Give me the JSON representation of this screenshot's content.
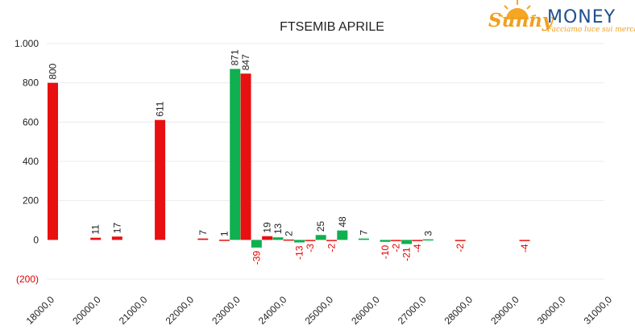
{
  "logo": {
    "word1": "Sunny",
    "word2": "MONEY",
    "tagline": "Facciamo luce sui mercati",
    "colors": {
      "sunny": "#f0a020",
      "money": "#1e4f8f"
    }
  },
  "chart_data": {
    "type": "bar",
    "title": "FTSEMIB APRILE",
    "ylim": [
      -200,
      1000
    ],
    "y_ticks": [
      {
        "value": 1000,
        "label": "1.000",
        "color": "#222222"
      },
      {
        "value": 800,
        "label": "800",
        "color": "#222222"
      },
      {
        "value": 600,
        "label": "600",
        "color": "#222222"
      },
      {
        "value": 400,
        "label": "400",
        "color": "#222222"
      },
      {
        "value": 200,
        "label": "200",
        "color": "#222222"
      },
      {
        "value": 0,
        "label": "0",
        "color": "#222222"
      },
      {
        "value": -200,
        "label": "(200)",
        "color": "#e00000"
      }
    ],
    "x_range": [
      18000,
      31000
    ],
    "x_ticks": [
      "18000,0",
      "20000,0",
      "21000,0",
      "22000,0",
      "23000,0",
      "24000,0",
      "25000,0",
      "26000,0",
      "27000,0",
      "28000,0",
      "29000,0",
      "30000,0",
      "31000,0"
    ],
    "grid": true,
    "colors": {
      "put": "#e81010",
      "call": "#0fb050",
      "negative_label": "#e00000",
      "label": "#222222"
    },
    "bars": [
      {
        "x": 18000,
        "series": "put",
        "value": 800,
        "label": "800"
      },
      {
        "x": 19000,
        "series": "put",
        "value": 11,
        "label": "11"
      },
      {
        "x": 19500,
        "series": "put",
        "value": 17,
        "label": "17"
      },
      {
        "x": 20500,
        "series": "put",
        "value": 611,
        "label": "611"
      },
      {
        "x": 21500,
        "series": "put",
        "value": 7,
        "label": "7"
      },
      {
        "x": 22000,
        "series": "put",
        "value": 1,
        "label": "1"
      },
      {
        "x": 22250,
        "series": "call",
        "value": 871,
        "label": "871"
      },
      {
        "x": 22500,
        "series": "put",
        "value": 847,
        "label": "847"
      },
      {
        "x": 22750,
        "series": "call",
        "value": -39,
        "label": "-39"
      },
      {
        "x": 23000,
        "series": "put",
        "value": 19,
        "label": "19"
      },
      {
        "x": 23250,
        "series": "call",
        "value": 13,
        "label": "13"
      },
      {
        "x": 23500,
        "series": "put",
        "value": 2,
        "label": "2"
      },
      {
        "x": 23750,
        "series": "call",
        "value": -13,
        "label": "-13"
      },
      {
        "x": 24000,
        "series": "put",
        "value": -3,
        "label": "-3"
      },
      {
        "x": 24250,
        "series": "call",
        "value": 25,
        "label": "25"
      },
      {
        "x": 24500,
        "series": "put",
        "value": -2,
        "label": "-2"
      },
      {
        "x": 24750,
        "series": "call",
        "value": 48,
        "label": "48"
      },
      {
        "x": 25250,
        "series": "call",
        "value": 7,
        "label": "7"
      },
      {
        "x": 25750,
        "series": "call",
        "value": -10,
        "label": "-10"
      },
      {
        "x": 26000,
        "series": "put",
        "value": -2,
        "label": "-2"
      },
      {
        "x": 26250,
        "series": "call",
        "value": -21,
        "label": "-21"
      },
      {
        "x": 26500,
        "series": "put",
        "value": -4,
        "label": "-4"
      },
      {
        "x": 26750,
        "series": "call",
        "value": 3,
        "label": "3"
      },
      {
        "x": 27500,
        "series": "put",
        "value": -2,
        "label": "-2"
      },
      {
        "x": 29000,
        "series": "put",
        "value": -4,
        "label": "-4"
      }
    ]
  }
}
